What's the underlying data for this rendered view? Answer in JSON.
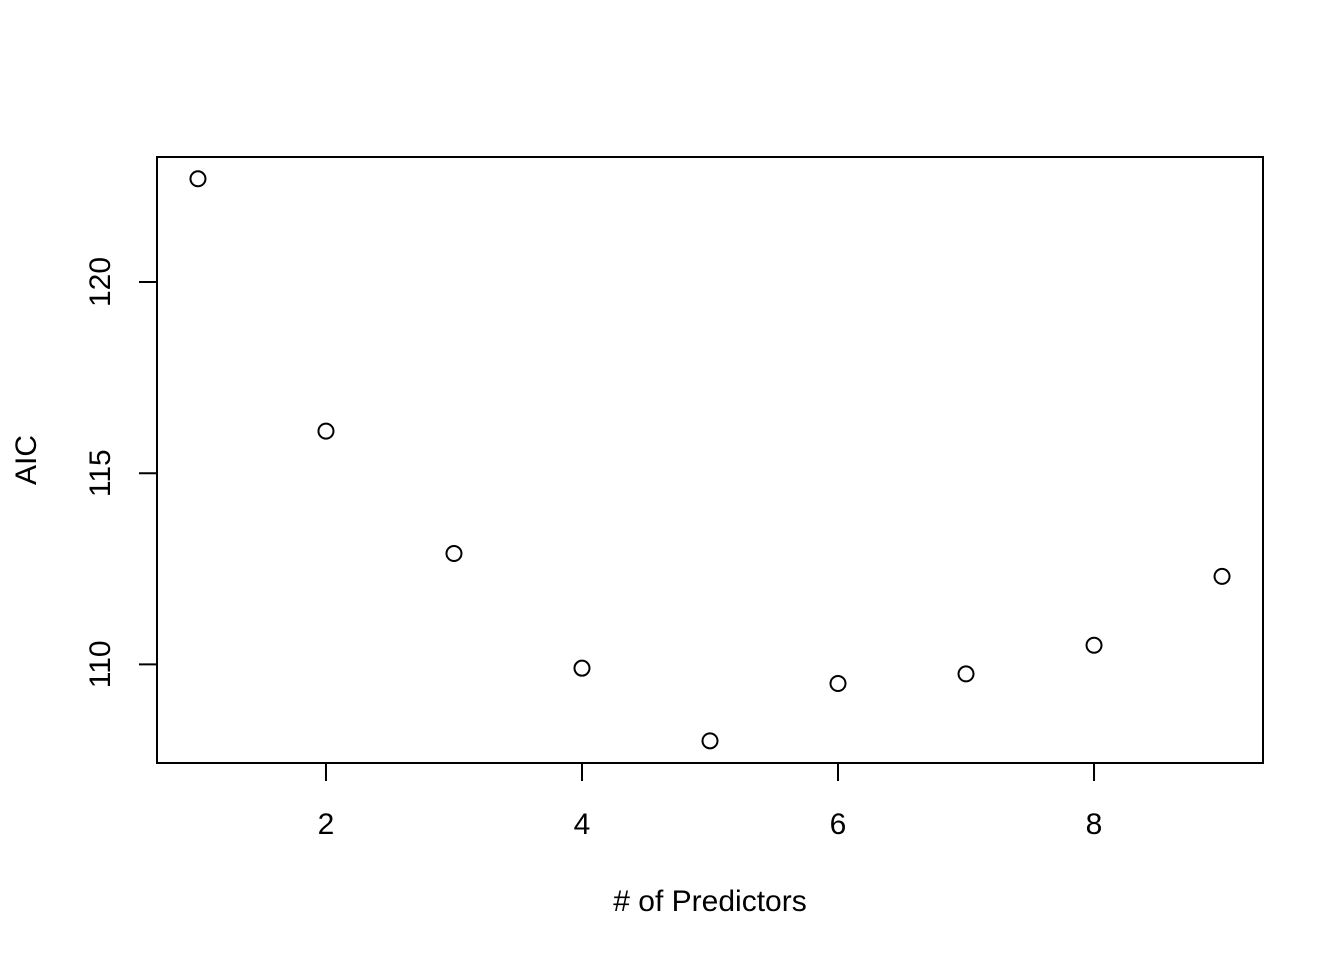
{
  "chart_data": {
    "type": "scatter",
    "title": "",
    "xlabel": "# of Predictors",
    "ylabel": "AIC",
    "x": [
      1,
      2,
      3,
      4,
      5,
      6,
      7,
      8,
      9
    ],
    "y": [
      122.7,
      116.1,
      112.9,
      109.9,
      108.0,
      109.5,
      109.75,
      110.5,
      112.3
    ],
    "xlim": [
      0.68,
      9.32
    ],
    "ylim": [
      107.42,
      123.27
    ],
    "x_ticks": [
      2,
      4,
      6,
      8
    ],
    "y_ticks": [
      110,
      115,
      120
    ],
    "marker": "open-circle",
    "grid": false,
    "legend": "none",
    "colors": {
      "points": "#000000",
      "axes": "#000000",
      "background": "#ffffff"
    }
  }
}
